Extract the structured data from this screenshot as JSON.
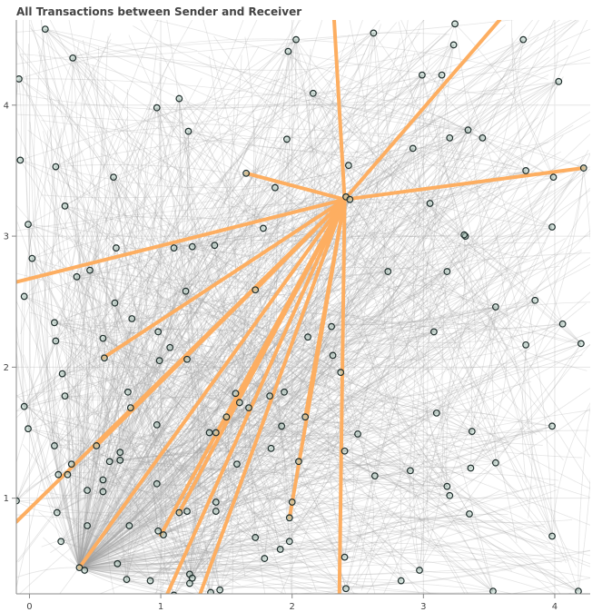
{
  "chart_data": {
    "type": "scatter",
    "title": "All Transactions between Sender and Receiver",
    "xlabel": "",
    "ylabel": "",
    "xlim": [
      -0.1,
      4.27
    ],
    "ylim": [
      0.27,
      4.65
    ],
    "x_ticks": [
      0,
      1,
      2,
      3,
      4
    ],
    "y_ticks": [
      1,
      2,
      3,
      4
    ],
    "grid": true,
    "legend": "none",
    "colors": {
      "node_fill": "#b3cfc4",
      "node_stroke": "#1f2d2b",
      "edge": "#a0a0a0",
      "highlight_edge": "#fdae61"
    },
    "nodes": [
      [
        0.38,
        0.47
      ],
      [
        0.42,
        0.45
      ],
      [
        0.12,
        4.58
      ],
      [
        0.33,
        4.36
      ],
      [
        -0.08,
        4.2
      ],
      [
        0.97,
        3.98
      ],
      [
        1.14,
        4.05
      ],
      [
        1.21,
        3.8
      ],
      [
        -0.07,
        3.58
      ],
      [
        0.2,
        3.53
      ],
      [
        0.27,
        3.23
      ],
      [
        0.64,
        3.45
      ],
      [
        -0.01,
        3.09
      ],
      [
        0.02,
        2.83
      ],
      [
        0.36,
        2.69
      ],
      [
        0.46,
        2.74
      ],
      [
        0.66,
        2.91
      ],
      [
        1.1,
        2.91
      ],
      [
        1.24,
        2.92
      ],
      [
        1.41,
        2.93
      ],
      [
        1.19,
        2.58
      ],
      [
        -0.04,
        2.54
      ],
      [
        0.65,
        2.49
      ],
      [
        0.19,
        2.34
      ],
      [
        0.2,
        2.2
      ],
      [
        0.56,
        2.22
      ],
      [
        0.57,
        2.07
      ],
      [
        0.78,
        2.37
      ],
      [
        0.98,
        2.27
      ],
      [
        1.07,
        2.15
      ],
      [
        0.99,
        2.05
      ],
      [
        1.2,
        2.06
      ],
      [
        0.25,
        1.95
      ],
      [
        0.27,
        1.78
      ],
      [
        0.75,
        1.81
      ],
      [
        0.77,
        1.69
      ],
      [
        -0.04,
        1.7
      ],
      [
        -0.01,
        1.53
      ],
      [
        0.19,
        1.4
      ],
      [
        0.51,
        1.4
      ],
      [
        0.69,
        1.35
      ],
      [
        0.69,
        1.29
      ],
      [
        0.61,
        1.28
      ],
      [
        0.32,
        1.26
      ],
      [
        0.22,
        1.18
      ],
      [
        0.29,
        1.18
      ],
      [
        0.56,
        1.14
      ],
      [
        0.44,
        1.06
      ],
      [
        0.56,
        1.05
      ],
      [
        0.97,
        1.56
      ],
      [
        1.37,
        1.5
      ],
      [
        1.42,
        1.5
      ],
      [
        1.5,
        1.62
      ],
      [
        1.57,
        1.8
      ],
      [
        1.6,
        1.73
      ],
      [
        1.67,
        1.69
      ],
      [
        1.83,
        1.78
      ],
      [
        1.94,
        1.81
      ],
      [
        1.92,
        1.55
      ],
      [
        1.84,
        1.38
      ],
      [
        1.58,
        1.26
      ],
      [
        0.97,
        1.11
      ],
      [
        -0.1,
        0.98
      ],
      [
        0.21,
        0.89
      ],
      [
        0.44,
        0.79
      ],
      [
        0.76,
        0.79
      ],
      [
        0.98,
        0.75
      ],
      [
        1.02,
        0.72
      ],
      [
        1.14,
        0.89
      ],
      [
        1.2,
        0.9
      ],
      [
        1.42,
        0.97
      ],
      [
        1.42,
        0.9
      ],
      [
        1.72,
        0.7
      ],
      [
        1.79,
        0.54
      ],
      [
        1.91,
        0.61
      ],
      [
        1.98,
        0.67
      ],
      [
        1.98,
        0.85
      ],
      [
        2.0,
        0.97
      ],
      [
        0.24,
        0.67
      ],
      [
        0.67,
        0.5
      ],
      [
        0.74,
        0.38
      ],
      [
        0.92,
        0.37
      ],
      [
        1.22,
        0.42
      ],
      [
        1.24,
        0.39
      ],
      [
        1.22,
        0.35
      ],
      [
        1.1,
        0.26
      ],
      [
        1.38,
        0.28
      ],
      [
        1.45,
        0.3
      ],
      [
        2.1,
        1.62
      ],
      [
        2.05,
        1.28
      ],
      [
        1.97,
        4.41
      ],
      [
        2.03,
        4.5
      ],
      [
        2.16,
        4.09
      ],
      [
        1.96,
        3.74
      ],
      [
        1.65,
        3.48
      ],
      [
        1.87,
        3.37
      ],
      [
        1.78,
        3.06
      ],
      [
        1.72,
        2.59
      ],
      [
        2.41,
        3.3
      ],
      [
        2.44,
        3.28
      ],
      [
        2.43,
        3.54
      ],
      [
        2.62,
        4.55
      ],
      [
        2.99,
        4.23
      ],
      [
        3.14,
        4.23
      ],
      [
        2.92,
        3.67
      ],
      [
        3.2,
        3.75
      ],
      [
        3.34,
        3.81
      ],
      [
        3.45,
        3.75
      ],
      [
        3.23,
        4.46
      ],
      [
        3.24,
        4.62
      ],
      [
        3.05,
        3.25
      ],
      [
        3.32,
        3.0
      ],
      [
        3.31,
        3.01
      ],
      [
        3.18,
        2.73
      ],
      [
        2.73,
        2.73
      ],
      [
        2.3,
        2.31
      ],
      [
        2.31,
        2.09
      ],
      [
        2.12,
        2.23
      ],
      [
        2.37,
        1.96
      ],
      [
        3.08,
        2.27
      ],
      [
        3.1,
        1.65
      ],
      [
        2.5,
        1.49
      ],
      [
        2.4,
        1.36
      ],
      [
        2.63,
        1.17
      ],
      [
        2.9,
        1.21
      ],
      [
        3.37,
        1.51
      ],
      [
        3.36,
        1.23
      ],
      [
        3.18,
        1.09
      ],
      [
        3.2,
        1.02
      ],
      [
        3.35,
        0.88
      ],
      [
        3.55,
        1.27
      ],
      [
        2.4,
        0.55
      ],
      [
        2.41,
        0.31
      ],
      [
        2.83,
        0.37
      ],
      [
        2.97,
        0.45
      ],
      [
        3.53,
        0.29
      ],
      [
        3.55,
        2.46
      ],
      [
        3.78,
        2.17
      ],
      [
        3.85,
        2.51
      ],
      [
        3.98,
        3.07
      ],
      [
        3.99,
        3.45
      ],
      [
        3.78,
        3.5
      ],
      [
        3.76,
        4.5
      ],
      [
        4.03,
        4.18
      ],
      [
        4.22,
        3.52
      ],
      [
        4.06,
        2.33
      ],
      [
        4.2,
        2.18
      ],
      [
        3.98,
        1.55
      ],
      [
        3.98,
        0.71
      ],
      [
        4.18,
        0.29
      ]
    ],
    "hub": [
      2.4,
      3.28
    ],
    "highlighted_counterparts": [
      [
        -0.1,
        2.65
      ],
      [
        -0.1,
        0.82
      ],
      [
        0.38,
        0.47
      ],
      [
        0.56,
        2.07
      ],
      [
        0.51,
        1.4
      ],
      [
        1.05,
        0.27
      ],
      [
        1.3,
        0.27
      ],
      [
        1.0,
        0.72
      ],
      [
        1.14,
        0.89
      ],
      [
        1.72,
        2.59
      ],
      [
        1.98,
        0.85
      ],
      [
        2.1,
        1.62
      ],
      [
        2.36,
        0.27
      ],
      [
        1.65,
        3.48
      ],
      [
        3.58,
        4.65
      ],
      [
        2.32,
        4.65
      ],
      [
        4.22,
        3.52
      ]
    ]
  }
}
